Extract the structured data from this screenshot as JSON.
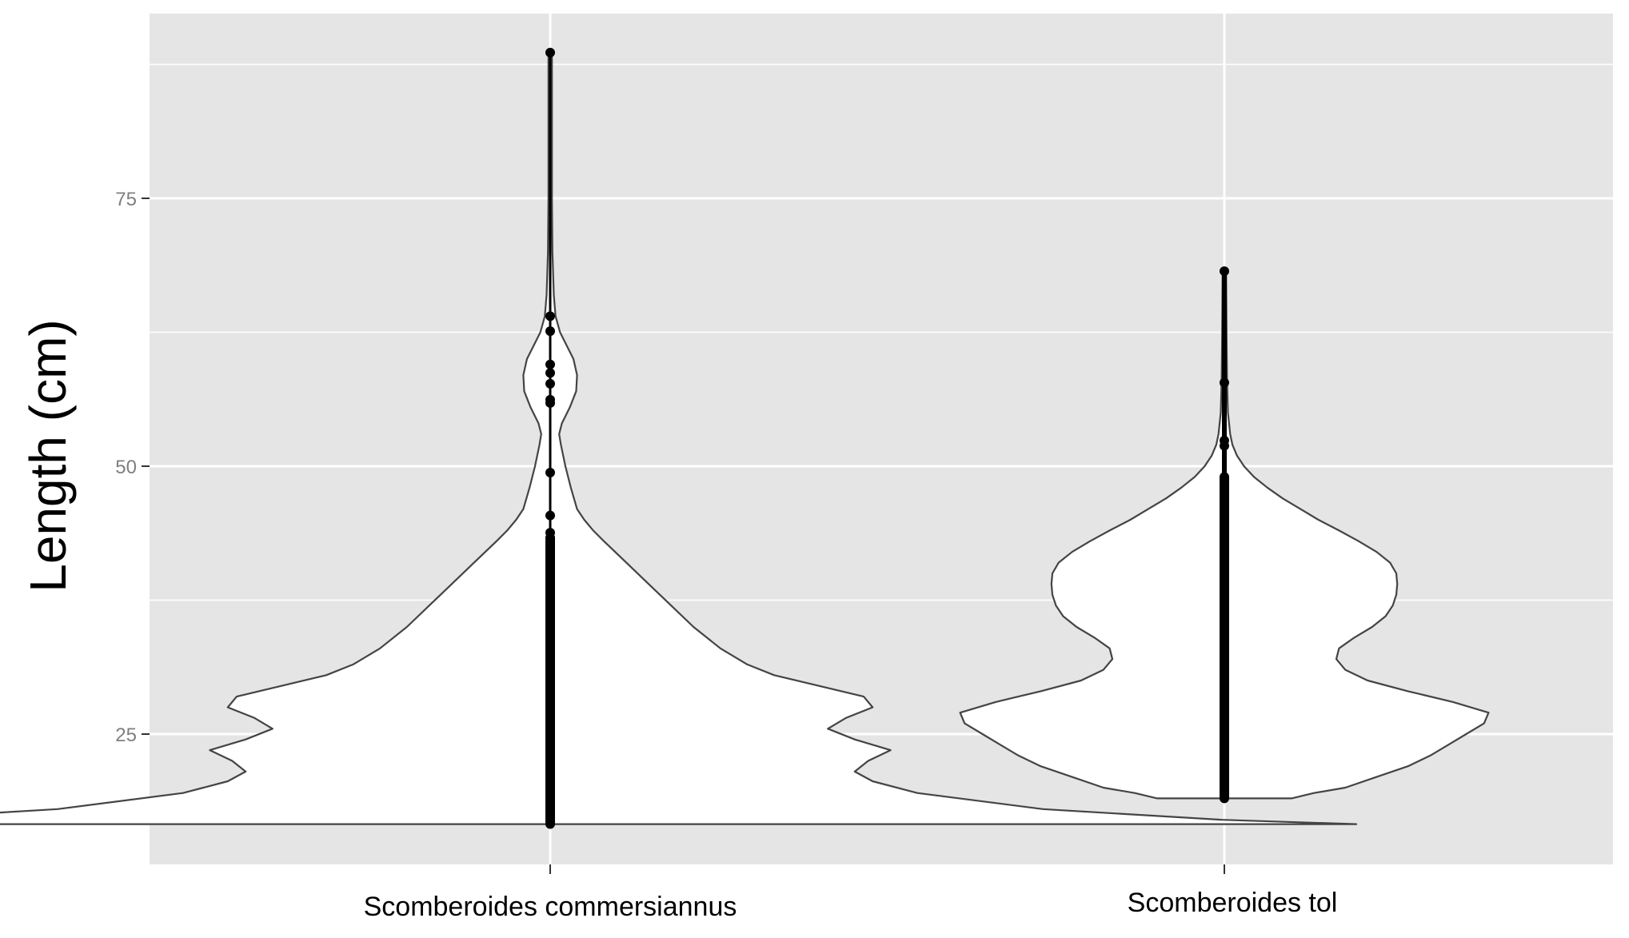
{
  "chart_data": {
    "type": "violin",
    "ylabel": "Length (cm)",
    "xlabel": "",
    "ylim": [
      12.5,
      92
    ],
    "yticks": [
      25,
      50,
      75
    ],
    "grid": true,
    "categories": [
      "Scomberoides commersiannus",
      "Scomberoides tol"
    ],
    "violins": [
      {
        "category": "Scomberoides commersiannus",
        "min": 16.6,
        "max": 88.6,
        "outline": [
          [
            16.6,
            9.0
          ],
          [
            17.0,
            7.5
          ],
          [
            18.0,
            5.5
          ],
          [
            19.5,
            4.1
          ],
          [
            20.6,
            3.6
          ],
          [
            21.5,
            3.4
          ],
          [
            22.5,
            3.55
          ],
          [
            23.5,
            3.8
          ],
          [
            24.5,
            3.4
          ],
          [
            25.5,
            3.1
          ],
          [
            26.5,
            3.3
          ],
          [
            27.5,
            3.6
          ],
          [
            28.5,
            3.5
          ],
          [
            29.5,
            3.0
          ],
          [
            30.5,
            2.5
          ],
          [
            31.5,
            2.2
          ],
          [
            33.0,
            1.9
          ],
          [
            35.0,
            1.6
          ],
          [
            37.0,
            1.35
          ],
          [
            39.0,
            1.1
          ],
          [
            41.0,
            0.85
          ],
          [
            43.0,
            0.6
          ],
          [
            44.0,
            0.48
          ],
          [
            45.0,
            0.38
          ],
          [
            46.0,
            0.3
          ],
          [
            48.0,
            0.23
          ],
          [
            50.0,
            0.17
          ],
          [
            52.0,
            0.12
          ],
          [
            53.0,
            0.1
          ],
          [
            54.0,
            0.13
          ],
          [
            55.5,
            0.22
          ],
          [
            57.0,
            0.29
          ],
          [
            58.5,
            0.3
          ],
          [
            60.0,
            0.26
          ],
          [
            61.5,
            0.17
          ],
          [
            62.5,
            0.11
          ],
          [
            64.0,
            0.06
          ],
          [
            66.0,
            0.04
          ],
          [
            70.0,
            0.025
          ],
          [
            75.0,
            0.02
          ],
          [
            82.0,
            0.02
          ],
          [
            88.6,
            0.02
          ]
        ],
        "points": [
          88.6,
          64.0,
          62.6,
          59.5,
          58.7,
          57.7,
          56.2,
          55.9,
          49.4,
          45.4,
          43.8,
          43.3
        ]
      },
      {
        "category": "Scomberoides tol",
        "min": 19.0,
        "max": 68.2,
        "outline": [
          [
            19.0,
            0.75
          ],
          [
            19.5,
            1.0
          ],
          [
            20.0,
            1.35
          ],
          [
            21.0,
            1.7
          ],
          [
            22.0,
            2.05
          ],
          [
            23.0,
            2.3
          ],
          [
            24.0,
            2.5
          ],
          [
            25.0,
            2.7
          ],
          [
            26.0,
            2.9
          ],
          [
            27.0,
            2.95
          ],
          [
            28.0,
            2.55
          ],
          [
            29.0,
            2.05
          ],
          [
            30.0,
            1.6
          ],
          [
            31.0,
            1.35
          ],
          [
            32.0,
            1.25
          ],
          [
            33.0,
            1.28
          ],
          [
            34.0,
            1.45
          ],
          [
            35.0,
            1.65
          ],
          [
            36.0,
            1.8
          ],
          [
            37.0,
            1.88
          ],
          [
            38.0,
            1.92
          ],
          [
            39.0,
            1.93
          ],
          [
            40.0,
            1.92
          ],
          [
            41.0,
            1.85
          ],
          [
            42.0,
            1.7
          ],
          [
            43.0,
            1.5
          ],
          [
            44.0,
            1.28
          ],
          [
            45.0,
            1.05
          ],
          [
            46.0,
            0.85
          ],
          [
            47.0,
            0.65
          ],
          [
            48.0,
            0.48
          ],
          [
            49.0,
            0.33
          ],
          [
            50.0,
            0.22
          ],
          [
            51.0,
            0.14
          ],
          [
            52.0,
            0.09
          ],
          [
            53.0,
            0.065
          ],
          [
            55.0,
            0.04
          ],
          [
            58.0,
            0.03
          ],
          [
            62.0,
            0.025
          ],
          [
            68.2,
            0.02
          ]
        ],
        "points": [
          68.2,
          57.8,
          52.4,
          51.9
        ]
      }
    ],
    "colors": {
      "panel": "#e5e5e5",
      "grid": "#ffffff",
      "fill": "#ffffff",
      "outline": "#444444",
      "points": "#000000"
    }
  }
}
